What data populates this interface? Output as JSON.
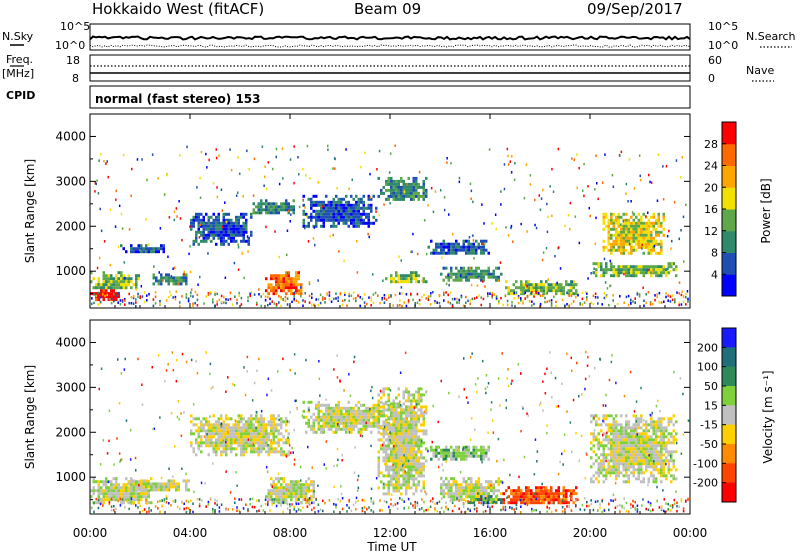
{
  "header": {
    "station": "Hokkaido West (fitACF)",
    "beam": "Beam 09",
    "date": "09/Sep/2017"
  },
  "noise_panel": {
    "left_label": "N.Sky",
    "right_label": "N.Search",
    "left_ticks": [
      "10^5",
      "10^0"
    ],
    "right_ticks": [
      "10^5",
      "10^0"
    ]
  },
  "freq_panel": {
    "left_label_top": "Freq.",
    "left_label_bottom": "[MHz]",
    "left_ticks": [
      "18",
      "8"
    ],
    "right_label": "Nave",
    "right_ticks": [
      "60",
      "0"
    ]
  },
  "cpid_panel": {
    "label": "CPID",
    "text": "normal (fast stereo) 153"
  },
  "x_axis": {
    "label": "Time UT",
    "ticks": [
      "00:00",
      "04:00",
      "08:00",
      "12:00",
      "16:00",
      "20:00",
      "00:00"
    ]
  },
  "chart_data": [
    {
      "type": "heatmap",
      "name": "power",
      "ylabel": "Slant Range [km]",
      "y_ticks": [
        "1000",
        "2000",
        "3000",
        "4000"
      ],
      "ylim": [
        180,
        4500
      ],
      "xlim_hours": [
        0,
        24
      ],
      "colorbar": {
        "label": "Power [dB]",
        "ticks": [
          "4",
          "8",
          "12",
          "16",
          "20",
          "24",
          "28"
        ],
        "colors": [
          "#0000ff",
          "#1f4fb5",
          "#2e8a6a",
          "#5fa84a",
          "#f2e000",
          "#ffa500",
          "#ff6a00",
          "#ff0000"
        ]
      },
      "echo_regions": [
        {
          "t": [
            0.0,
            1.2
          ],
          "range": [
            350,
            600
          ],
          "level": 7
        },
        {
          "t": [
            0.0,
            2.0
          ],
          "range": [
            600,
            1000
          ],
          "level": 3
        },
        {
          "t": [
            1.2,
            3.0
          ],
          "range": [
            1400,
            1600
          ],
          "level": 1
        },
        {
          "t": [
            2.5,
            4.0
          ],
          "range": [
            700,
            950
          ],
          "level": 2
        },
        {
          "t": [
            4.0,
            6.5
          ],
          "range": [
            1600,
            2300
          ],
          "level": 1
        },
        {
          "t": [
            6.5,
            8.2
          ],
          "range": [
            2300,
            2600
          ],
          "level": 2
        },
        {
          "t": [
            7.0,
            8.5
          ],
          "range": [
            500,
            1000
          ],
          "level": 6
        },
        {
          "t": [
            8.5,
            11.5
          ],
          "range": [
            2000,
            2700
          ],
          "level": 1
        },
        {
          "t": [
            11.5,
            13.5
          ],
          "range": [
            2600,
            3100
          ],
          "level": 2
        },
        {
          "t": [
            11.8,
            13.5
          ],
          "range": [
            750,
            1000
          ],
          "level": 3
        },
        {
          "t": [
            13.5,
            16.0
          ],
          "range": [
            1400,
            1700
          ],
          "level": 1
        },
        {
          "t": [
            14.0,
            16.5
          ],
          "range": [
            800,
            1100
          ],
          "level": 2
        },
        {
          "t": [
            16.5,
            19.5
          ],
          "range": [
            500,
            800
          ],
          "level": 3
        },
        {
          "t": [
            20.5,
            23.0
          ],
          "range": [
            1400,
            2300
          ],
          "level": 4
        },
        {
          "t": [
            20.0,
            23.5
          ],
          "range": [
            900,
            1200
          ],
          "level": 3
        }
      ]
    },
    {
      "type": "heatmap",
      "name": "velocity",
      "ylabel": "Slant Range [km]",
      "y_ticks": [
        "1000",
        "2000",
        "3000",
        "4000"
      ],
      "ylim": [
        180,
        4500
      ],
      "xlim_hours": [
        0,
        24
      ],
      "colorbar": {
        "label": "Velocity [m s⁻¹]",
        "ticks": [
          "200",
          "100",
          "50",
          "15",
          "-15",
          "-50",
          "-100",
          "-200"
        ],
        "colors": [
          "#1a1aff",
          "#1f6f7a",
          "#2e8b57",
          "#7fd13b",
          "#c0c0c0",
          "#ffd000",
          "#ff8c00",
          "#ff4500",
          "#ff0000"
        ]
      },
      "echo_regions": [
        {
          "t": [
            0.0,
            2.5
          ],
          "range": [
            400,
            1000
          ],
          "level": 4
        },
        {
          "t": [
            1.5,
            4.0
          ],
          "range": [
            700,
            950
          ],
          "level": 4
        },
        {
          "t": [
            4.0,
            8.0
          ],
          "range": [
            1500,
            2400
          ],
          "level": 4
        },
        {
          "t": [
            7.0,
            9.0
          ],
          "range": [
            400,
            1000
          ],
          "level": 4
        },
        {
          "t": [
            8.5,
            12.0
          ],
          "range": [
            2000,
            2700
          ],
          "level": 4
        },
        {
          "t": [
            11.5,
            13.5
          ],
          "range": [
            600,
            3000
          ],
          "level": 4
        },
        {
          "t": [
            13.5,
            16.0
          ],
          "range": [
            1400,
            1700
          ],
          "level": 3
        },
        {
          "t": [
            14.0,
            16.5
          ],
          "range": [
            500,
            1000
          ],
          "level": 4
        },
        {
          "t": [
            15.0,
            16.5
          ],
          "range": [
            450,
            600
          ],
          "level": 2
        },
        {
          "t": [
            16.5,
            19.5
          ],
          "range": [
            400,
            800
          ],
          "level": 7
        },
        {
          "t": [
            20.0,
            23.5
          ],
          "range": [
            900,
            2400
          ],
          "level": 4
        }
      ]
    }
  ]
}
